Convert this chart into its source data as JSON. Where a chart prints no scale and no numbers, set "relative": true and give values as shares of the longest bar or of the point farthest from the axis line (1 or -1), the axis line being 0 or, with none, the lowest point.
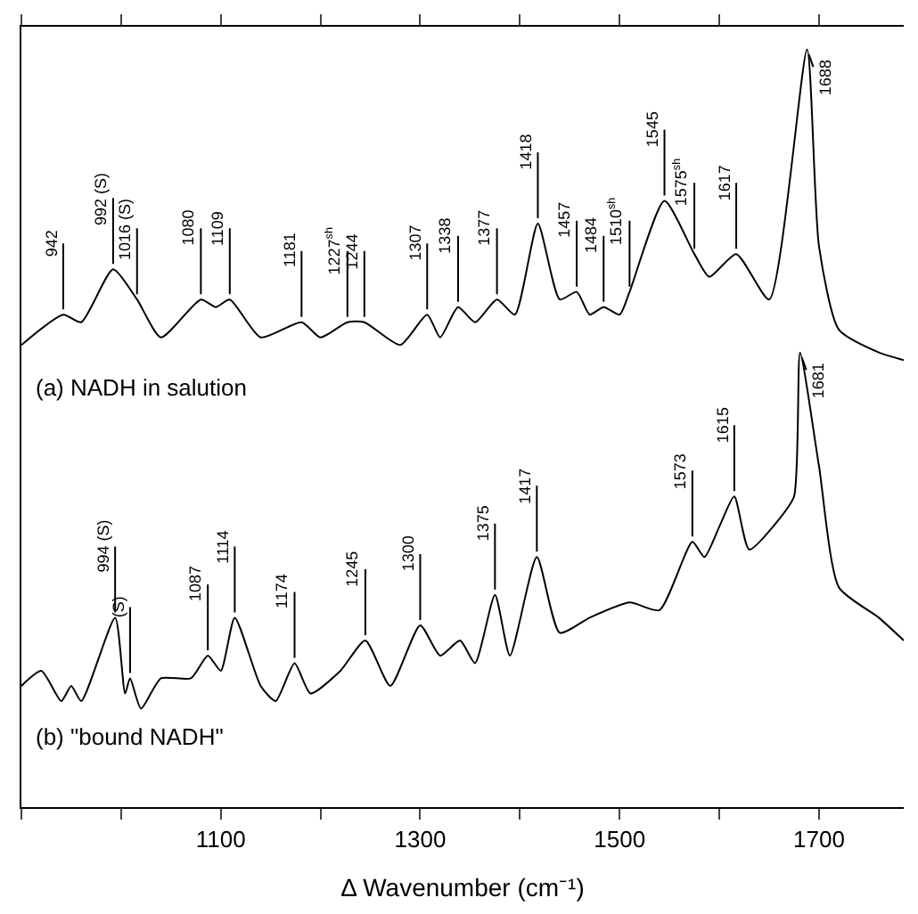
{
  "chart_data": {
    "type": "line",
    "relative": true,
    "xlabel": "Δ Wavenumber (cm⁻¹)",
    "xlim": [
      900,
      1785
    ],
    "xticks": [
      {
        "value": 900,
        "label": null
      },
      {
        "value": 1000,
        "label": null
      },
      1100,
      {
        "value": 1200,
        "label": null
      },
      1300,
      {
        "value": 1400,
        "label": null
      },
      1500,
      {
        "value": 1600,
        "label": null
      },
      1700
    ],
    "tick_labels": "x",
    "legend": false,
    "marker": "none",
    "line_style": "solid",
    "series": [
      {
        "name": "(a) NADH in salution",
        "color": "#000000",
        "x": [
          900,
          942,
          960,
          992,
          1016,
          1040,
          1080,
          1095,
          1109,
          1140,
          1181,
          1200,
          1227,
          1244,
          1280,
          1307,
          1320,
          1338,
          1355,
          1377,
          1395,
          1418,
          1440,
          1457,
          1470,
          1484,
          1500,
          1510,
          1545,
          1575,
          1590,
          1617,
          1650,
          1688,
          1700,
          1720,
          1760,
          1785
        ],
        "values": [
          0.61,
          0.65,
          0.64,
          0.71,
          0.67,
          0.62,
          0.67,
          0.66,
          0.67,
          0.62,
          0.64,
          0.62,
          0.64,
          0.64,
          0.61,
          0.65,
          0.62,
          0.66,
          0.64,
          0.67,
          0.65,
          0.77,
          0.67,
          0.68,
          0.65,
          0.66,
          0.65,
          0.68,
          0.8,
          0.73,
          0.7,
          0.73,
          0.67,
          1.0,
          0.74,
          0.63,
          0.6,
          0.59
        ]
      },
      {
        "name": "(b) \"bound NADH\"",
        "color": "#000000",
        "x": [
          900,
          920,
          940,
          950,
          960,
          994,
          1004,
          1009,
          1020,
          1040,
          1070,
          1087,
          1100,
          1114,
          1140,
          1155,
          1174,
          1190,
          1220,
          1245,
          1270,
          1300,
          1320,
          1340,
          1355,
          1375,
          1390,
          1417,
          1440,
          1470,
          1510,
          1540,
          1573,
          1585,
          1600,
          1615,
          1630,
          1660,
          1675,
          1681,
          1700,
          1720,
          1760,
          1785
        ],
        "values": [
          0.16,
          0.18,
          0.14,
          0.16,
          0.14,
          0.25,
          0.15,
          0.17,
          0.13,
          0.17,
          0.17,
          0.2,
          0.18,
          0.25,
          0.16,
          0.14,
          0.19,
          0.15,
          0.18,
          0.22,
          0.16,
          0.24,
          0.2,
          0.22,
          0.19,
          0.28,
          0.2,
          0.33,
          0.23,
          0.25,
          0.27,
          0.26,
          0.35,
          0.33,
          0.37,
          0.41,
          0.34,
          0.38,
          0.41,
          0.6,
          0.45,
          0.29,
          0.25,
          0.22
        ]
      }
    ],
    "annotations": [
      {
        "text": "942",
        "x": 942,
        "y": 0.65
      },
      {
        "text": "992 (S)",
        "x": 992,
        "y": 0.71
      },
      {
        "text": "1016 (S)",
        "x": 1016,
        "y": 0.67
      },
      {
        "text": "1080",
        "x": 1080,
        "y": 0.67
      },
      {
        "text": "1109",
        "x": 1109,
        "y": 0.67
      },
      {
        "text": "1181",
        "x": 1181,
        "y": 0.64
      },
      {
        "text": "1227$^{sh}$",
        "x": 1227,
        "y": 0.64
      },
      {
        "text": "1244",
        "x": 1244,
        "y": 0.64
      },
      {
        "text": "1307",
        "x": 1307,
        "y": 0.65
      },
      {
        "text": "1338",
        "x": 1338,
        "y": 0.66
      },
      {
        "text": "1377",
        "x": 1377,
        "y": 0.67
      },
      {
        "text": "1418",
        "x": 1418,
        "y": 0.77
      },
      {
        "text": "1457",
        "x": 1457,
        "y": 0.68
      },
      {
        "text": "1484",
        "x": 1484,
        "y": 0.66
      },
      {
        "text": "1510$^{sh}$",
        "x": 1510,
        "y": 0.68
      },
      {
        "text": "1545",
        "x": 1545,
        "y": 0.8
      },
      {
        "text": "1575$^{sh}$",
        "x": 1575,
        "y": 0.73
      },
      {
        "text": "1617",
        "x": 1617,
        "y": 0.73
      },
      {
        "text": "1688",
        "x": 1688,
        "y": 1.0
      },
      {
        "text": "994 (S)",
        "x": 994,
        "y": 0.25
      },
      {
        "text": "(S)",
        "x": 1009,
        "y": 0.17
      },
      {
        "text": "1087",
        "x": 1087,
        "y": 0.2
      },
      {
        "text": "1114",
        "x": 1114,
        "y": 0.25
      },
      {
        "text": "1174",
        "x": 1174,
        "y": 0.19
      },
      {
        "text": "1245",
        "x": 1245,
        "y": 0.22
      },
      {
        "text": "1300",
        "x": 1300,
        "y": 0.24
      },
      {
        "text": "1375",
        "x": 1375,
        "y": 0.28
      },
      {
        "text": "1417",
        "x": 1417,
        "y": 0.33
      },
      {
        "text": "1573",
        "x": 1573,
        "y": 0.35
      },
      {
        "text": "1615",
        "x": 1615,
        "y": 0.41
      },
      {
        "text": "1681",
        "x": 1681,
        "y": 0.6
      }
    ]
  }
}
